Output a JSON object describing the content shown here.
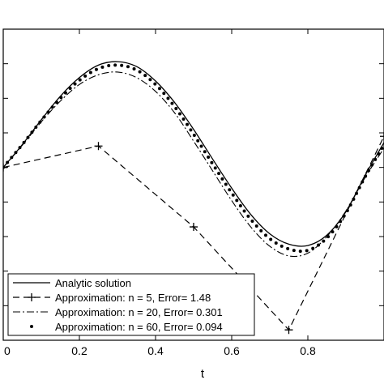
{
  "chart_data": {
    "type": "line",
    "title": "",
    "xlabel": "t",
    "ylabel": "",
    "xlim": [
      0,
      1
    ],
    "ylim": [
      -2.5,
      2
    ],
    "x_ticks": [
      0,
      0.2,
      0.4,
      0.6,
      0.8
    ],
    "x_tick_labels": [
      "0",
      "0.2",
      "0.4",
      "0.6",
      "0.8"
    ],
    "y_ticks": [
      -2,
      -1.5,
      -1,
      -0.5,
      0,
      0.5,
      1,
      1.5
    ],
    "grid": false,
    "legend_position": "bottom-left",
    "series": [
      {
        "name": "Analytic solution",
        "style": "solid",
        "x": [
          0,
          0.05,
          0.1,
          0.15,
          0.2,
          0.25,
          0.3,
          0.35,
          0.4,
          0.45,
          0.5,
          0.55,
          0.6,
          0.65,
          0.7,
          0.75,
          0.8,
          0.85,
          0.9,
          0.95,
          1.0
        ],
        "values": [
          0,
          0.33,
          0.69,
          1.03,
          1.3,
          1.48,
          1.53,
          1.46,
          1.25,
          0.94,
          0.55,
          0.12,
          -0.3,
          -0.68,
          -0.96,
          -1.11,
          -1.13,
          -0.98,
          -0.64,
          -0.12,
          0.36
        ]
      },
      {
        "name": "Approximation: n = 5, Error= 1.48",
        "style": "dashed",
        "x": [
          0,
          0.25,
          0.5,
          0.75,
          1.0
        ],
        "values": [
          0,
          0.31,
          -0.86,
          -2.35,
          0.45
        ]
      },
      {
        "name": "Approximation: n = 20, Error= 0.301",
        "style": "dashdot",
        "x": [
          0,
          0.05,
          0.1,
          0.15,
          0.2,
          0.25,
          0.3,
          0.35,
          0.4,
          0.45,
          0.5,
          0.55,
          0.6,
          0.65,
          0.7,
          0.75,
          0.8,
          0.85,
          0.9,
          0.95,
          1.0
        ],
        "values": [
          0,
          0.32,
          0.66,
          0.96,
          1.2,
          1.34,
          1.38,
          1.3,
          1.1,
          0.79,
          0.38,
          -0.05,
          -0.48,
          -0.86,
          -1.14,
          -1.28,
          -1.24,
          -1.0,
          -0.63,
          -0.15,
          0.28
        ]
      },
      {
        "name": "Approximation: n = 60, Error= 0.094",
        "style": "dotted",
        "x": [
          0,
          0.05,
          0.1,
          0.15,
          0.2,
          0.25,
          0.3,
          0.35,
          0.4,
          0.45,
          0.5,
          0.55,
          0.6,
          0.65,
          0.7,
          0.75,
          0.8,
          0.85,
          0.9,
          0.95,
          1.0
        ],
        "values": [
          0,
          0.33,
          0.68,
          1.0,
          1.26,
          1.43,
          1.48,
          1.41,
          1.2,
          0.88,
          0.48,
          0.05,
          -0.37,
          -0.75,
          -1.03,
          -1.18,
          -1.2,
          -1.02,
          -0.66,
          -0.14,
          0.33
        ]
      }
    ]
  }
}
